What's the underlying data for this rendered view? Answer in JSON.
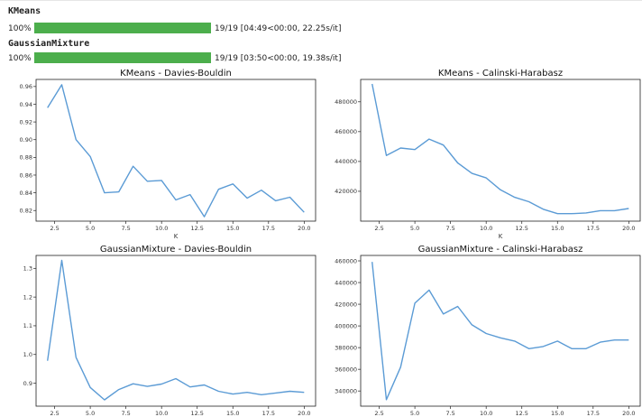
{
  "progress": [
    {
      "name": "KMeans",
      "percent_label": "100%",
      "fraction": 1.0,
      "stats": "19/19 [04:49<00:00, 22.25s/it]"
    },
    {
      "name": "GaussianMixture",
      "percent_label": "100%",
      "fraction": 1.0,
      "stats": "19/19 [03:50<00:00, 19.38s/it]"
    }
  ],
  "colors": {
    "line": "#5b9bd5",
    "progress": "#4cae4c"
  },
  "chart_data": [
    {
      "type": "line",
      "title": "KMeans - Davies-Bouldin",
      "xlabel": "K",
      "ylabel": "",
      "x": [
        2,
        3,
        4,
        5,
        6,
        7,
        8,
        9,
        10,
        11,
        12,
        13,
        14,
        15,
        16,
        17,
        18,
        19,
        20
      ],
      "values": [
        0.936,
        0.962,
        0.9,
        0.881,
        0.84,
        0.841,
        0.87,
        0.853,
        0.854,
        0.832,
        0.838,
        0.813,
        0.844,
        0.85,
        0.834,
        0.843,
        0.831,
        0.835,
        0.818
      ],
      "xlim": [
        1.2,
        20.8
      ],
      "ylim": [
        0.808,
        0.968
      ],
      "xticks": [
        2.5,
        5,
        7.5,
        10,
        12.5,
        15,
        17.5,
        20
      ],
      "xtick_labels": [
        "2.5",
        "5.0",
        "7.5",
        "10.0",
        "12.5",
        "15.0",
        "17.5",
        "20.0"
      ],
      "yticks": [
        0.82,
        0.84,
        0.86,
        0.88,
        0.9,
        0.92,
        0.94,
        0.96
      ],
      "ytick_labels": [
        "0.82",
        "0.84",
        "0.86",
        "0.88",
        "0.90",
        "0.92",
        "0.94",
        "0.96"
      ],
      "grid": false
    },
    {
      "type": "line",
      "title": "KMeans - Calinski-Harabasz",
      "xlabel": "K",
      "ylabel": "",
      "x": [
        2,
        3,
        4,
        5,
        6,
        7,
        8,
        9,
        10,
        11,
        12,
        13,
        14,
        15,
        16,
        17,
        18,
        19,
        20
      ],
      "values": [
        492000,
        444000,
        449000,
        448000,
        455000,
        451000,
        439000,
        432000,
        429000,
        421000,
        416000,
        413000,
        408000,
        405000,
        405000,
        405500,
        407000,
        407000,
        408500
      ],
      "xlim": [
        1.2,
        20.8
      ],
      "ylim": [
        400000,
        495000
      ],
      "xticks": [
        2.5,
        5,
        7.5,
        10,
        12.5,
        15,
        17.5,
        20
      ],
      "xtick_labels": [
        "2.5",
        "5.0",
        "7.5",
        "10.0",
        "12.5",
        "15.0",
        "17.5",
        "20.0"
      ],
      "yticks": [
        420000,
        440000,
        460000,
        480000
      ],
      "ytick_labels": [
        "420000",
        "440000",
        "460000",
        "480000"
      ],
      "grid": false
    },
    {
      "type": "line",
      "title": "GaussianMixture - Davies-Bouldin",
      "xlabel": "K",
      "ylabel": "",
      "x": [
        2,
        3,
        4,
        5,
        6,
        7,
        8,
        9,
        10,
        11,
        12,
        13,
        14,
        15,
        16,
        17,
        18,
        19,
        20
      ],
      "values": [
        0.978,
        1.328,
        0.99,
        0.885,
        0.842,
        0.878,
        0.898,
        0.889,
        0.897,
        0.916,
        0.887,
        0.894,
        0.872,
        0.862,
        0.868,
        0.86,
        0.866,
        0.872,
        0.868
      ],
      "xlim": [
        1.2,
        20.8
      ],
      "ylim": [
        0.82,
        1.345
      ],
      "xticks": [
        2.5,
        5,
        7.5,
        10,
        12.5,
        15,
        17.5,
        20
      ],
      "xtick_labels": [
        "2.5",
        "5.0",
        "7.5",
        "10.0",
        "12.5",
        "15.0",
        "17.5",
        "20.0"
      ],
      "yticks": [
        0.9,
        1.0,
        1.1,
        1.2,
        1.3
      ],
      "ytick_labels": [
        "0.9",
        "1.0",
        "1.1",
        "1.2",
        "1.3"
      ],
      "grid": false
    },
    {
      "type": "line",
      "title": "GaussianMixture - Calinski-Harabasz",
      "xlabel": "K",
      "ylabel": "",
      "x": [
        2,
        3,
        4,
        5,
        6,
        7,
        8,
        9,
        10,
        11,
        12,
        13,
        14,
        15,
        16,
        17,
        18,
        19,
        20
      ],
      "values": [
        459000,
        332000,
        362000,
        421000,
        433000,
        411000,
        418000,
        401000,
        393000,
        389000,
        386000,
        379000,
        381000,
        386000,
        379000,
        379000,
        385000,
        387000,
        387000
      ],
      "xlim": [
        1.2,
        20.8
      ],
      "ylim": [
        326000,
        465000
      ],
      "xticks": [
        2.5,
        5,
        7.5,
        10,
        12.5,
        15,
        17.5,
        20
      ],
      "xtick_labels": [
        "2.5",
        "5.0",
        "7.5",
        "10.0",
        "12.5",
        "15.0",
        "17.5",
        "20.0"
      ],
      "yticks": [
        340000,
        360000,
        380000,
        400000,
        420000,
        440000,
        460000
      ],
      "ytick_labels": [
        "340000",
        "360000",
        "380000",
        "400000",
        "420000",
        "440000",
        "460000"
      ],
      "grid": false
    }
  ]
}
